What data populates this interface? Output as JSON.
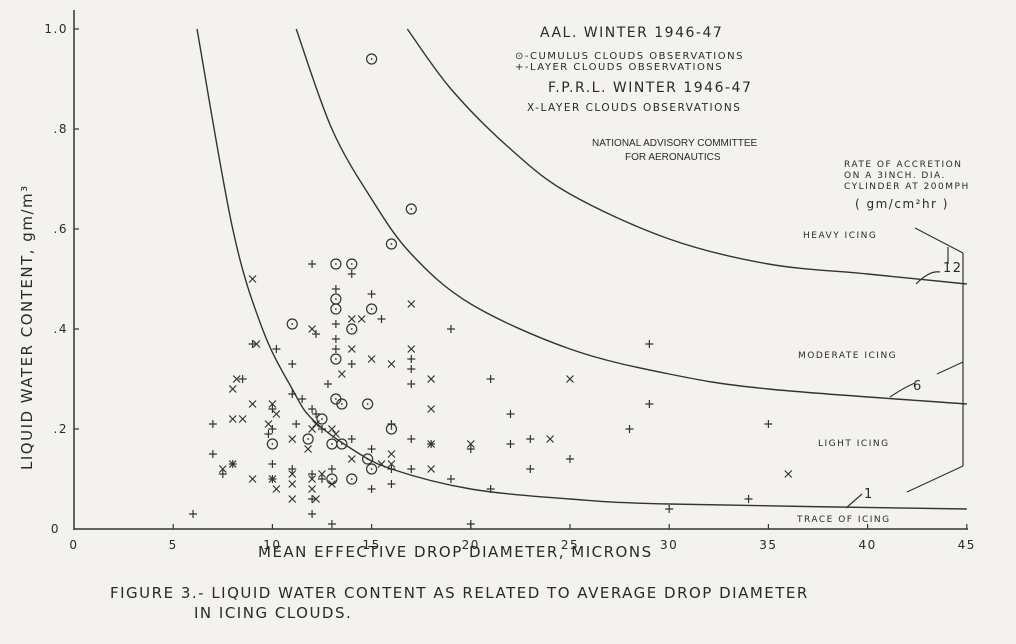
{
  "figure": {
    "caption_line1": "FIGURE 3.- LIQUID WATER CONTENT AS RELATED TO AVERAGE DROP DIAMETER",
    "caption_line2": "IN ICING CLOUDS.",
    "legend": {
      "aal_title": "AAL. WINTER 1946-47",
      "cumulus": "⊙-CUMULUS CLOUDS OBSERVATIONS",
      "layer_plus": "+-LAYER CLOUDS OBSERVATIONS",
      "fprl_title": "F.P.R.L. WINTER 1946-47",
      "layer_x": "X-LAYER CLOUDS OBSERVATIONS"
    },
    "agency_line1": "NATIONAL ADVISORY COMMITTEE",
    "agency_line2": "FOR AERONAUTICS",
    "rate_note": {
      "line1": "RATE OF ACCRETION",
      "line2": "ON A 3INCH. DIA.",
      "line3": "CYLINDER AT 200MPH",
      "units": "( gm/cm²hr )"
    },
    "region_labels": {
      "heavy": "HEAVY ICING",
      "moderate": "MODERATE ICING",
      "light": "LIGHT ICING",
      "trace": "TRACE OF ICING"
    },
    "curve_labels": {
      "c12": "12",
      "c6": "6",
      "c1": "1"
    }
  },
  "chart_data": {
    "type": "scatter",
    "title": "Liquid water content as related to average drop diameter in icing clouds",
    "xlabel": "MEAN EFFECTIVE DROP DIAMETER, MICRONS",
    "ylabel": "LIQUID WATER CONTENT, gm/m³",
    "xlim": [
      0,
      45
    ],
    "ylim": [
      0,
      1.0
    ],
    "x_ticks": [
      "0",
      "5",
      "10",
      "15",
      "20",
      "25",
      "30",
      "35",
      "40",
      "45"
    ],
    "y_ticks": [
      "0",
      ".2",
      ".4",
      ".6",
      ".8",
      "1.0"
    ],
    "grid": false,
    "series": [
      {
        "name": "AAL Winter 1946-47 Cumulus clouds observations",
        "marker": "circle-dot",
        "points": [
          [
            15,
            0.94
          ],
          [
            17,
            0.64
          ],
          [
            16,
            0.57
          ],
          [
            13.2,
            0.53
          ],
          [
            14,
            0.53
          ],
          [
            11,
            0.41
          ],
          [
            13.2,
            0.46
          ],
          [
            13.2,
            0.44
          ],
          [
            15,
            0.44
          ],
          [
            14,
            0.4
          ],
          [
            13.2,
            0.34
          ],
          [
            14.8,
            0.25
          ],
          [
            13.2,
            0.26
          ],
          [
            13.5,
            0.25
          ],
          [
            12.5,
            0.22
          ],
          [
            10,
            0.17
          ],
          [
            13,
            0.17
          ],
          [
            13.5,
            0.17
          ],
          [
            16,
            0.2
          ],
          [
            14.8,
            0.14
          ],
          [
            11.8,
            0.18
          ],
          [
            13,
            0.1
          ],
          [
            14,
            0.1
          ],
          [
            15,
            0.12
          ]
        ]
      },
      {
        "name": "AAL Winter 1946-47 Layer clouds observations",
        "marker": "plus",
        "points": [
          [
            12,
            0.53
          ],
          [
            14,
            0.51
          ],
          [
            15,
            0.47
          ],
          [
            13.2,
            0.48
          ],
          [
            13.2,
            0.41
          ],
          [
            13.2,
            0.38
          ],
          [
            13.2,
            0.36
          ],
          [
            12.2,
            0.39
          ],
          [
            11,
            0.33
          ],
          [
            15.5,
            0.42
          ],
          [
            17,
            0.32
          ],
          [
            17,
            0.34
          ],
          [
            17,
            0.29
          ],
          [
            14,
            0.33
          ],
          [
            19,
            0.4
          ],
          [
            11,
            0.27
          ],
          [
            10.2,
            0.36
          ],
          [
            9,
            0.37
          ],
          [
            8.5,
            0.3
          ],
          [
            10,
            0.2
          ],
          [
            10,
            0.24
          ],
          [
            11.5,
            0.26
          ],
          [
            12.8,
            0.29
          ],
          [
            12,
            0.24
          ],
          [
            12.5,
            0.2
          ],
          [
            12.2,
            0.23
          ],
          [
            11.2,
            0.21
          ],
          [
            7,
            0.21
          ],
          [
            7,
            0.15
          ],
          [
            8,
            0.13
          ],
          [
            7.5,
            0.11
          ],
          [
            9.8,
            0.19
          ],
          [
            10,
            0.13
          ],
          [
            11,
            0.12
          ],
          [
            12,
            0.11
          ],
          [
            12.5,
            0.1
          ],
          [
            13,
            0.12
          ],
          [
            14,
            0.18
          ],
          [
            15,
            0.16
          ],
          [
            16,
            0.12
          ],
          [
            16,
            0.09
          ],
          [
            15,
            0.08
          ],
          [
            17,
            0.18
          ],
          [
            18,
            0.17
          ],
          [
            17,
            0.12
          ],
          [
            16,
            0.21
          ],
          [
            19,
            0.1
          ],
          [
            20,
            0.16
          ],
          [
            21,
            0.3
          ],
          [
            22,
            0.23
          ],
          [
            22,
            0.17
          ],
          [
            23,
            0.18
          ],
          [
            23,
            0.12
          ],
          [
            25,
            0.14
          ],
          [
            21,
            0.08
          ],
          [
            28,
            0.2
          ],
          [
            29,
            0.25
          ],
          [
            29,
            0.37
          ],
          [
            35,
            0.21
          ],
          [
            34,
            0.06
          ],
          [
            30,
            0.04
          ],
          [
            20,
            0.01
          ],
          [
            13,
            0.01
          ],
          [
            12,
            0.03
          ],
          [
            12,
            0.06
          ],
          [
            10,
            0.1
          ],
          [
            6,
            0.03
          ]
        ]
      },
      {
        "name": "FPRL Winter 1946-47 Layer clouds observations",
        "marker": "x",
        "points": [
          [
            9,
            0.5
          ],
          [
            9.2,
            0.37
          ],
          [
            12,
            0.4
          ],
          [
            14,
            0.42
          ],
          [
            14.5,
            0.42
          ],
          [
            16,
            0.33
          ],
          [
            17,
            0.45
          ],
          [
            13.5,
            0.31
          ],
          [
            14,
            0.36
          ],
          [
            15,
            0.34
          ],
          [
            8.2,
            0.3
          ],
          [
            8,
            0.28
          ],
          [
            9,
            0.25
          ],
          [
            10,
            0.25
          ],
          [
            10.2,
            0.23
          ],
          [
            8.5,
            0.22
          ],
          [
            8,
            0.22
          ],
          [
            9.8,
            0.21
          ],
          [
            11,
            0.18
          ],
          [
            12,
            0.2
          ],
          [
            12.2,
            0.21
          ],
          [
            13,
            0.2
          ],
          [
            13.2,
            0.19
          ],
          [
            11.8,
            0.16
          ],
          [
            10,
            0.1
          ],
          [
            10.2,
            0.08
          ],
          [
            11,
            0.09
          ],
          [
            11,
            0.11
          ],
          [
            12,
            0.1
          ],
          [
            12.5,
            0.11
          ],
          [
            13,
            0.09
          ],
          [
            12.2,
            0.06
          ],
          [
            12,
            0.08
          ],
          [
            11,
            0.06
          ],
          [
            9,
            0.1
          ],
          [
            8,
            0.13
          ],
          [
            7.5,
            0.12
          ],
          [
            14,
            0.14
          ],
          [
            16,
            0.13
          ],
          [
            16,
            0.15
          ],
          [
            18,
            0.12
          ],
          [
            18,
            0.17
          ],
          [
            18,
            0.24
          ],
          [
            18,
            0.3
          ],
          [
            20,
            0.17
          ],
          [
            24,
            0.18
          ],
          [
            25,
            0.3
          ],
          [
            36,
            0.11
          ],
          [
            17,
            0.36
          ],
          [
            15.5,
            0.13
          ]
        ]
      }
    ],
    "curves": [
      {
        "label": "1",
        "description": "Trace/Light icing boundary, accretion rate 1 gm/cm²hr",
        "points": [
          [
            6.2,
            1.0
          ],
          [
            8,
            0.6
          ],
          [
            9.5,
            0.4
          ],
          [
            11,
            0.28
          ],
          [
            12,
            0.22
          ],
          [
            14,
            0.16
          ],
          [
            16,
            0.12
          ],
          [
            20,
            0.08
          ],
          [
            25,
            0.06
          ],
          [
            30,
            0.05
          ],
          [
            45,
            0.04
          ]
        ]
      },
      {
        "label": "6",
        "description": "Light/Moderate icing boundary, accretion rate 6 gm/cm²hr",
        "points": [
          [
            11.2,
            1.0
          ],
          [
            13,
            0.8
          ],
          [
            15,
            0.66
          ],
          [
            17,
            0.55
          ],
          [
            20,
            0.45
          ],
          [
            25,
            0.36
          ],
          [
            30,
            0.31
          ],
          [
            35,
            0.28
          ],
          [
            45,
            0.25
          ]
        ]
      },
      {
        "label": "12",
        "description": "Moderate/Heavy icing boundary, accretion rate 12 gm/cm²hr",
        "points": [
          [
            16.8,
            1.0
          ],
          [
            19,
            0.88
          ],
          [
            22,
            0.76
          ],
          [
            25,
            0.67
          ],
          [
            30,
            0.58
          ],
          [
            35,
            0.53
          ],
          [
            40,
            0.51
          ],
          [
            45,
            0.49
          ]
        ]
      }
    ],
    "annotations": [
      "HEAVY ICING",
      "MODERATE ICING",
      "LIGHT ICING",
      "TRACE OF ICING",
      "NATIONAL ADVISORY COMMITTEE FOR AERONAUTICS",
      "RATE OF ACCRETION ON A 3INCH. DIA. CYLINDER AT 200MPH (gm/cm²hr)"
    ]
  }
}
